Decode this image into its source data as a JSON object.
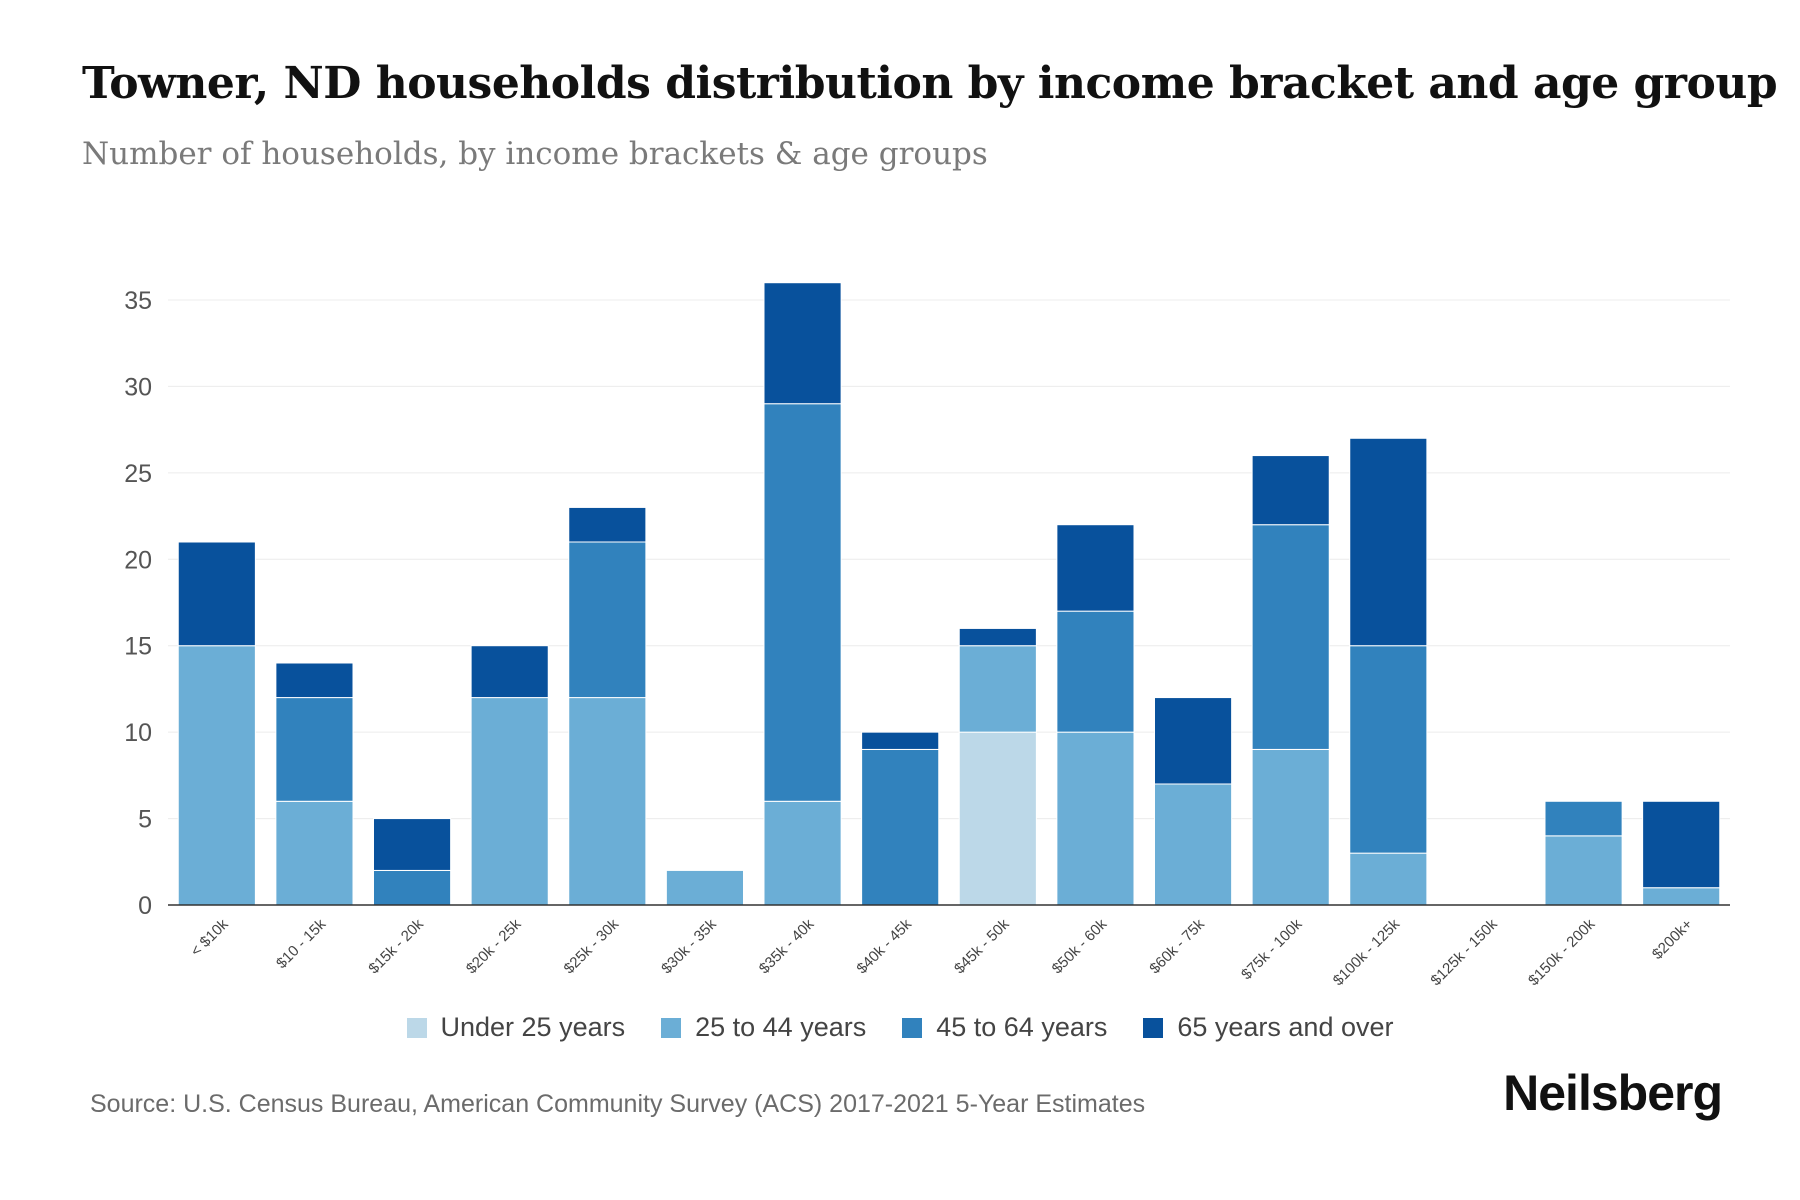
{
  "title": "Towner, ND households distribution by income bracket and age group",
  "subtitle": "Number of households, by income brackets & age groups",
  "source": "Source: U.S. Census Bureau, American Community Survey (ACS) 2017-2021 5-Year Estimates",
  "brand": "Neilsberg",
  "chart_data": {
    "type": "bar",
    "stacked": true,
    "title": "Towner, ND households distribution by income bracket and age group",
    "xlabel": "",
    "ylabel": "",
    "ylim": [
      0,
      35
    ],
    "yticks": [
      0,
      5,
      10,
      15,
      20,
      25,
      30,
      35
    ],
    "grid": true,
    "legend_position": "bottom",
    "categories": [
      "< $10k",
      "$10 - 15k",
      "$15k - 20k",
      "$20k - 25k",
      "$25k - 30k",
      "$30k - 35k",
      "$35k - 40k",
      "$40k - 45k",
      "$45k - 50k",
      "$50k - 60k",
      "$60k - 75k",
      "$75k - 100k",
      "$100k - 125k",
      "$125k - 150k",
      "$150k - 200k",
      "$200k+"
    ],
    "series": [
      {
        "name": "Under 25 years",
        "color": "#bcd8e8",
        "values": [
          0,
          0,
          0,
          0,
          0,
          0,
          0,
          0,
          10,
          0,
          0,
          0,
          0,
          0,
          0,
          0
        ]
      },
      {
        "name": "25 to 44 years",
        "color": "#6baed6",
        "values": [
          15,
          6,
          0,
          12,
          12,
          2,
          6,
          0,
          5,
          10,
          7,
          9,
          3,
          0,
          4,
          1
        ]
      },
      {
        "name": "45 to 64 years",
        "color": "#3182bd",
        "values": [
          0,
          6,
          2,
          0,
          9,
          0,
          23,
          9,
          0,
          7,
          0,
          13,
          12,
          0,
          2,
          0
        ]
      },
      {
        "name": "65 years and over",
        "color": "#08519c",
        "values": [
          6,
          2,
          3,
          3,
          2,
          0,
          7,
          1,
          1,
          5,
          5,
          4,
          12,
          0,
          0,
          5
        ]
      }
    ]
  }
}
